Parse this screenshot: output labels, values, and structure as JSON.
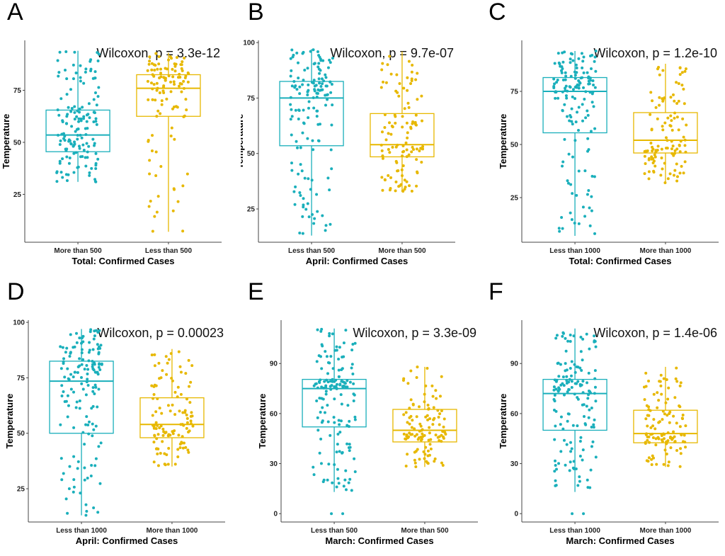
{
  "colors": {
    "group1": "#1AAFBB",
    "group2": "#E7B800",
    "axis": "#444444"
  },
  "chart_data": [
    {
      "panel": "A",
      "type": "box",
      "title": "",
      "xlabel": "Total: Confirmed Cases",
      "ylabel": "Temperature",
      "annotation": "Wilcoxon, p = 3.3e-12",
      "ylim": [
        2,
        99
      ],
      "yticks": [
        25,
        50,
        75
      ],
      "categories": [
        "More than 500",
        "Less than 500"
      ],
      "series": [
        {
          "whisker_low": 31,
          "q1": 45.5,
          "median": 53.5,
          "q3": 65.5,
          "whisker_high": 94
        },
        {
          "whisker_low": 7,
          "q1": 62.5,
          "median": 76,
          "q3": 82.5,
          "whisker_high": 93
        }
      ]
    },
    {
      "panel": "B",
      "type": "box",
      "title": "",
      "xlabel": "April: Confirmed Cases",
      "ylabel": "Temperature",
      "annotation": "Wilcoxon, p = 9.7e-07",
      "ylim": [
        10,
        101
      ],
      "yticks": [
        25,
        50,
        75,
        100
      ],
      "categories": [
        "Less than 500",
        "More than 500"
      ],
      "series": [
        {
          "whisker_low": 13,
          "q1": 53.5,
          "median": 75,
          "q3": 82.5,
          "whisker_high": 97
        },
        {
          "whisker_low": 33,
          "q1": 48.5,
          "median": 54,
          "q3": 68,
          "whisker_high": 96
        }
      ]
    },
    {
      "panel": "C",
      "type": "box",
      "title": "",
      "xlabel": "Total: Confirmed Cases",
      "ylabel": "Temperature",
      "annotation": "Wilcoxon, p = 1.2e-10",
      "ylim": [
        4,
        99
      ],
      "yticks": [
        25,
        50,
        75
      ],
      "categories": [
        "Less than 1000",
        "More than 1000"
      ],
      "series": [
        {
          "whisker_low": 7,
          "q1": 55.5,
          "median": 75,
          "q3": 81.5,
          "whisker_high": 94
        },
        {
          "whisker_low": 32,
          "q1": 46,
          "median": 52,
          "q3": 65,
          "whisker_high": 88
        }
      ]
    },
    {
      "panel": "D",
      "type": "box",
      "title": "",
      "xlabel": "April: Confirmed Cases",
      "ylabel": "Temperature",
      "annotation": "Wilcoxon, p = 0.00023",
      "ylim": [
        10,
        101
      ],
      "yticks": [
        25,
        50,
        75,
        100
      ],
      "categories": [
        "Less than 1000",
        "More than 1000"
      ],
      "series": [
        {
          "whisker_low": 13,
          "q1": 50,
          "median": 73.5,
          "q3": 82.5,
          "whisker_high": 97
        },
        {
          "whisker_low": 35,
          "q1": 48,
          "median": 54,
          "q3": 66,
          "whisker_high": 88
        }
      ]
    },
    {
      "panel": "E",
      "type": "box",
      "title": "",
      "xlabel": "March: Confirmed Cases",
      "ylabel": "Temperature",
      "annotation": "Wilcoxon, p = 3.3e-09",
      "ylim": [
        -5,
        116
      ],
      "yticks": [
        0,
        30,
        60,
        90
      ],
      "categories": [
        "Less than 500",
        "More than 500"
      ],
      "series": [
        {
          "whisker_low": 13,
          "q1": 52,
          "median": 75,
          "q3": 80.5,
          "whisker_high": 111,
          "outliers": [
            0,
            0
          ]
        },
        {
          "whisker_low": 28,
          "q1": 43,
          "median": 50,
          "q3": 62.5,
          "whisker_high": 88
        }
      ]
    },
    {
      "panel": "F",
      "type": "box",
      "title": "",
      "xlabel": "March: Confirmed Cases",
      "ylabel": "Temperature",
      "annotation": "Wilcoxon, p = 1.4e-06",
      "ylim": [
        -5,
        116
      ],
      "yticks": [
        0,
        30,
        60,
        90
      ],
      "categories": [
        "Less than 1000",
        "More than 1000"
      ],
      "series": [
        {
          "whisker_low": 13,
          "q1": 50,
          "median": 72,
          "q3": 80.5,
          "whisker_high": 111,
          "outliers": [
            0,
            0
          ]
        },
        {
          "whisker_low": 28,
          "q1": 42.5,
          "median": 48,
          "q3": 62,
          "whisker_high": 88
        }
      ]
    }
  ]
}
